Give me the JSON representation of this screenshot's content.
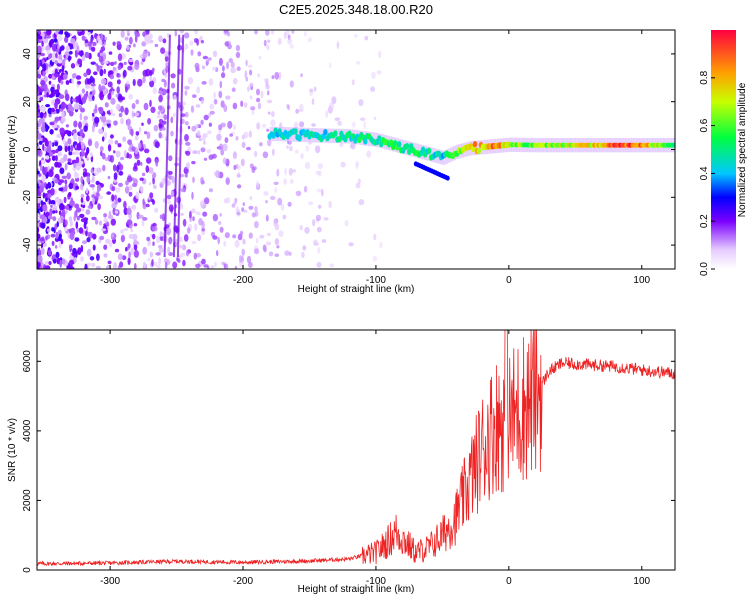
{
  "chart_data": [
    {
      "type": "heatmap",
      "title": "C2E5.2025.348.18.00.R20",
      "xlabel": "Height of straight line (km)",
      "ylabel": "Frequency (Hz)",
      "xlim": [
        -355,
        125
      ],
      "ylim": [
        -50,
        50
      ],
      "xticks": [
        -300,
        -200,
        -100,
        0,
        100
      ],
      "xtick_labels": [
        "-300",
        "-200",
        "-100",
        "0",
        "100"
      ],
      "yticks": [
        -40,
        -20,
        0,
        20,
        40
      ],
      "ytick_labels": [
        "-40",
        "-20",
        "0",
        "20",
        "40"
      ],
      "ridge": {
        "description": "high-amplitude signal near 0 Hz",
        "x": [
          -175,
          -150,
          -120,
          -100,
          -80,
          -60,
          -50,
          -40,
          -30,
          -20,
          -10,
          0,
          20,
          60,
          90,
          120
        ],
        "y": [
          6.5,
          6.0,
          5.5,
          4.0,
          1.0,
          -2.0,
          -3.5,
          -1.0,
          0.5,
          1.0,
          1.5,
          2.0,
          1.8,
          1.8,
          1.8,
          1.8
        ],
        "amplitude": [
          0.45,
          0.45,
          0.5,
          0.55,
          0.55,
          0.5,
          0.45,
          0.6,
          0.8,
          0.85,
          0.9,
          0.7,
          0.65,
          0.75,
          1.0,
          0.6
        ]
      },
      "colorbar": {
        "label": "Normalized spectral amplitude",
        "range": [
          0,
          1
        ],
        "ticks": [
          0.0,
          0.2,
          0.4,
          0.6,
          0.8
        ],
        "tick_labels": [
          "0.0",
          "0.2",
          "0.4",
          "0.6",
          "0.8"
        ],
        "colors": [
          "#ffffff",
          "#7a00ff",
          "#0000ff",
          "#00c8ff",
          "#00ff40",
          "#c8ff00",
          "#ffa000",
          "#ff0040"
        ]
      }
    },
    {
      "type": "line",
      "title": "",
      "xlabel": "Height of straight line (km)",
      "ylabel": "SNR (10 * v/v)",
      "xlim": [
        -355,
        125
      ],
      "ylim": [
        0,
        6900
      ],
      "xticks": [
        -300,
        -200,
        -100,
        0,
        100
      ],
      "xtick_labels": [
        "-300",
        "-200",
        "-100",
        "0",
        "100"
      ],
      "yticks": [
        0,
        2000,
        4000,
        6000
      ],
      "ytick_labels": [
        "0",
        "2000",
        "4000",
        "6000"
      ],
      "color": "#ee2222",
      "series": [
        {
          "name": "SNR",
          "x": [
            -355,
            -300,
            -250,
            -200,
            -150,
            -120,
            -100,
            -90,
            -85,
            -80,
            -70,
            -60,
            -50,
            -40,
            -30,
            -20,
            -10,
            0,
            10,
            20,
            30,
            40,
            60,
            80,
            100,
            125
          ],
          "y": [
            180,
            200,
            250,
            220,
            260,
            320,
            500,
            850,
            1100,
            900,
            500,
            650,
            1000,
            1500,
            2500,
            3500,
            4200,
            4300,
            4700,
            5000,
            5700,
            5950,
            5900,
            5850,
            5750,
            5650
          ]
        }
      ]
    }
  ]
}
